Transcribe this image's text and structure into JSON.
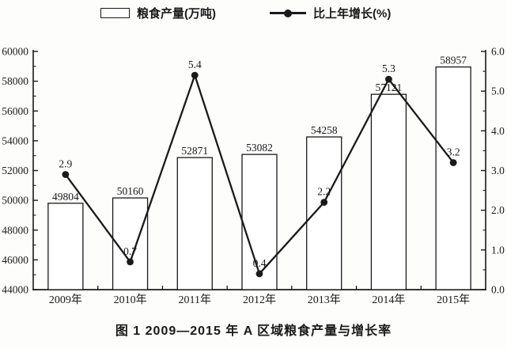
{
  "legend": {
    "bar_label": "粮食产量(万吨)",
    "line_label": "比上年增长(%)"
  },
  "caption": "图 1  2009—2015 年 A 区域粮食产量与增长率",
  "colors": {
    "ink": "#1a1a1a",
    "bar_fill": "#ffffff",
    "background": "#fdfdfc"
  },
  "chart_data": {
    "type": "bar",
    "subtype": "bar-line-combo",
    "categories": [
      "2009年",
      "2010年",
      "2011年",
      "2012年",
      "2013年",
      "2014年",
      "2015年"
    ],
    "series": [
      {
        "name": "粮食产量(万吨)",
        "type": "bar",
        "axis": "left",
        "values": [
          49804,
          50160,
          52871,
          53082,
          54258,
          57121,
          58957
        ],
        "labels": [
          "49804",
          "50160",
          "52871",
          "53082",
          "54258",
          "57121",
          "58957"
        ]
      },
      {
        "name": "比上年增长(%)",
        "type": "line",
        "axis": "right",
        "values": [
          2.9,
          0.7,
          5.4,
          0.4,
          2.2,
          5.3,
          3.2
        ],
        "labels": [
          "2.9",
          "0.7",
          "5.4",
          "0.4",
          "2.2",
          "5.3",
          "3.2"
        ]
      }
    ],
    "left_axis": {
      "min": 44000,
      "max": 60000,
      "step": 2000,
      "minor_step": 1000,
      "tick_labels": [
        "44000",
        "46000",
        "48000",
        "50000",
        "52000",
        "54000",
        "56000",
        "58000",
        "60000"
      ]
    },
    "right_axis": {
      "min": 0,
      "max": 6,
      "step": 1,
      "minor_step": 0.5,
      "tick_labels": [
        "0.0",
        "1.0",
        "2.0",
        "3.0",
        "4.0",
        "5.0",
        "6.0"
      ]
    },
    "grid": false,
    "legend_position": "top",
    "title": "图 1  2009—2015 年 A 区域粮食产量与增长率"
  }
}
